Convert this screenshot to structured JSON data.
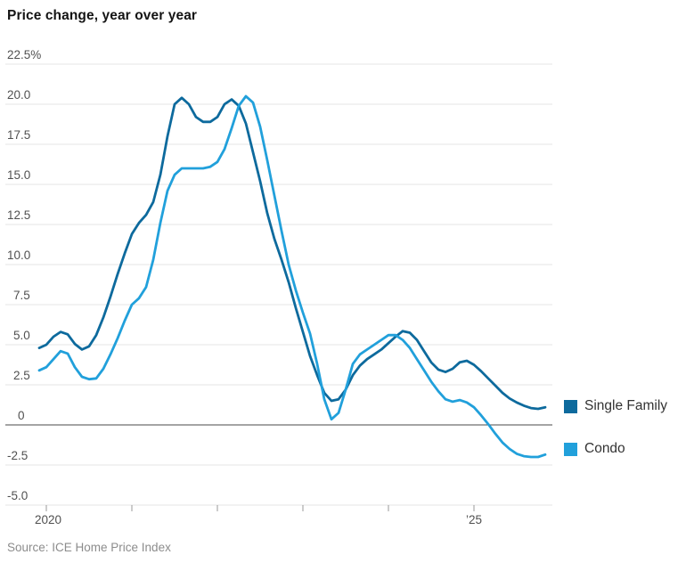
{
  "header": {
    "title": "Price change, year over year"
  },
  "x_axis": {
    "start_label": "2020",
    "end_label": "’25"
  },
  "source": {
    "text": "Source: ICE Home Price Index"
  },
  "chart_data": {
    "type": "line",
    "title": "Price change, year over year",
    "unit": "percent, year-over-year change",
    "ylim": [
      -5.0,
      22.5
    ],
    "grid": "horizontal",
    "zero_line": true,
    "legend_position": "right",
    "y_ticks": [
      22.5,
      20,
      17.5,
      15,
      12.5,
      10,
      7.5,
      5,
      2.5,
      0,
      -2.5,
      -5
    ],
    "y_tick_labels": [
      "22.5%",
      "20.0",
      "17.5",
      "15.0",
      "12.5",
      "10.0",
      "7.5",
      "5.0",
      "2.5",
      "0",
      "-2.5",
      "-5.0"
    ],
    "x_resolution": "monthly",
    "x_start": "Dec 2019",
    "x_tick_labels": [
      "2020",
      "",
      "",
      "",
      "",
      "’25"
    ],
    "x_visible_tick_labels": [
      "2020",
      "’25"
    ],
    "series": [
      {
        "name": "Single Family",
        "color": "#0d6a9d",
        "values": [
          4.8,
          5.0,
          5.5,
          5.8,
          5.65,
          5.05,
          4.7,
          4.9,
          5.6,
          6.7,
          8.0,
          9.4,
          10.7,
          11.9,
          12.6,
          13.1,
          13.9,
          15.6,
          18.0,
          20.0,
          20.4,
          20.0,
          19.2,
          18.9,
          18.9,
          19.2,
          20.0,
          20.3,
          19.9,
          18.8,
          17.0,
          15.2,
          13.2,
          11.6,
          10.3,
          8.9,
          7.3,
          5.8,
          4.3,
          3.1,
          2.0,
          1.5,
          1.6,
          2.2,
          3.1,
          3.7,
          4.1,
          4.4,
          4.7,
          5.1,
          5.5,
          5.85,
          5.75,
          5.3,
          4.6,
          3.9,
          3.45,
          3.3,
          3.5,
          3.9,
          4.0,
          3.75,
          3.35,
          2.9,
          2.45,
          2.0,
          1.65,
          1.4,
          1.2,
          1.05,
          1.0,
          1.1
        ]
      },
      {
        "name": "Condo",
        "color": "#21a0db",
        "values": [
          3.4,
          3.6,
          4.1,
          4.6,
          4.45,
          3.6,
          3.0,
          2.85,
          2.9,
          3.5,
          4.4,
          5.4,
          6.5,
          7.5,
          7.9,
          8.6,
          10.3,
          12.6,
          14.6,
          15.6,
          16.0,
          16.0,
          16.0,
          16.0,
          16.1,
          16.4,
          17.2,
          18.5,
          19.9,
          20.5,
          20.1,
          18.6,
          16.5,
          14.3,
          12.1,
          10.0,
          8.4,
          7.0,
          5.7,
          3.8,
          1.6,
          0.35,
          0.75,
          2.2,
          3.8,
          4.4,
          4.7,
          5.0,
          5.3,
          5.6,
          5.6,
          5.3,
          4.8,
          4.1,
          3.4,
          2.7,
          2.1,
          1.6,
          1.45,
          1.55,
          1.4,
          1.1,
          0.6,
          0.05,
          -0.55,
          -1.1,
          -1.5,
          -1.8,
          -1.95,
          -2.0,
          -2.0,
          -1.85
        ]
      }
    ],
    "source": "Source: ICE Home Price Index"
  }
}
